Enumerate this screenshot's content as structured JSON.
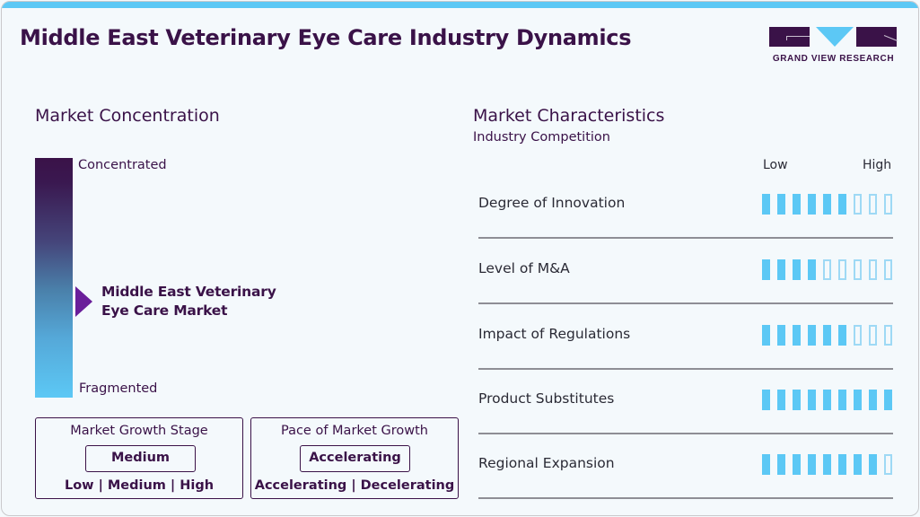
{
  "header": {
    "title": "Middle East Veterinary Eye Care Industry Dynamics",
    "logo_text": "GRAND VIEW RESEARCH"
  },
  "colors": {
    "brand_dark": "#3a1248",
    "accent_blue": "#5cc8f5",
    "pointer_purple": "#6a1f9a",
    "background": "#f4f9fc"
  },
  "concentration": {
    "title": "Market Concentration",
    "top_label": "Concentrated",
    "bottom_label": "Fragmented",
    "market_line1": "Middle East Veterinary",
    "market_line2": "Eye Care Market"
  },
  "growth_stage": {
    "title": "Market Growth Stage",
    "value": "Medium",
    "options": [
      "Low",
      "Medium",
      "High"
    ]
  },
  "growth_pace": {
    "title": "Pace of Market Growth",
    "value": "Accelerating",
    "options": [
      "Accelerating",
      "Decelerating"
    ]
  },
  "characteristics": {
    "title": "Market Characteristics",
    "subtitle": "Industry Competition",
    "scale_low": "Low",
    "scale_high": "High",
    "max_segments": 9,
    "rows": [
      {
        "label": "Degree of Innovation",
        "filled": 6
      },
      {
        "label": "Level of M&A",
        "filled": 4
      },
      {
        "label": "Impact of Regulations",
        "filled": 6
      },
      {
        "label": "Product Substitutes",
        "filled": 9
      },
      {
        "label": "Regional Expansion",
        "filled": 8
      }
    ]
  }
}
